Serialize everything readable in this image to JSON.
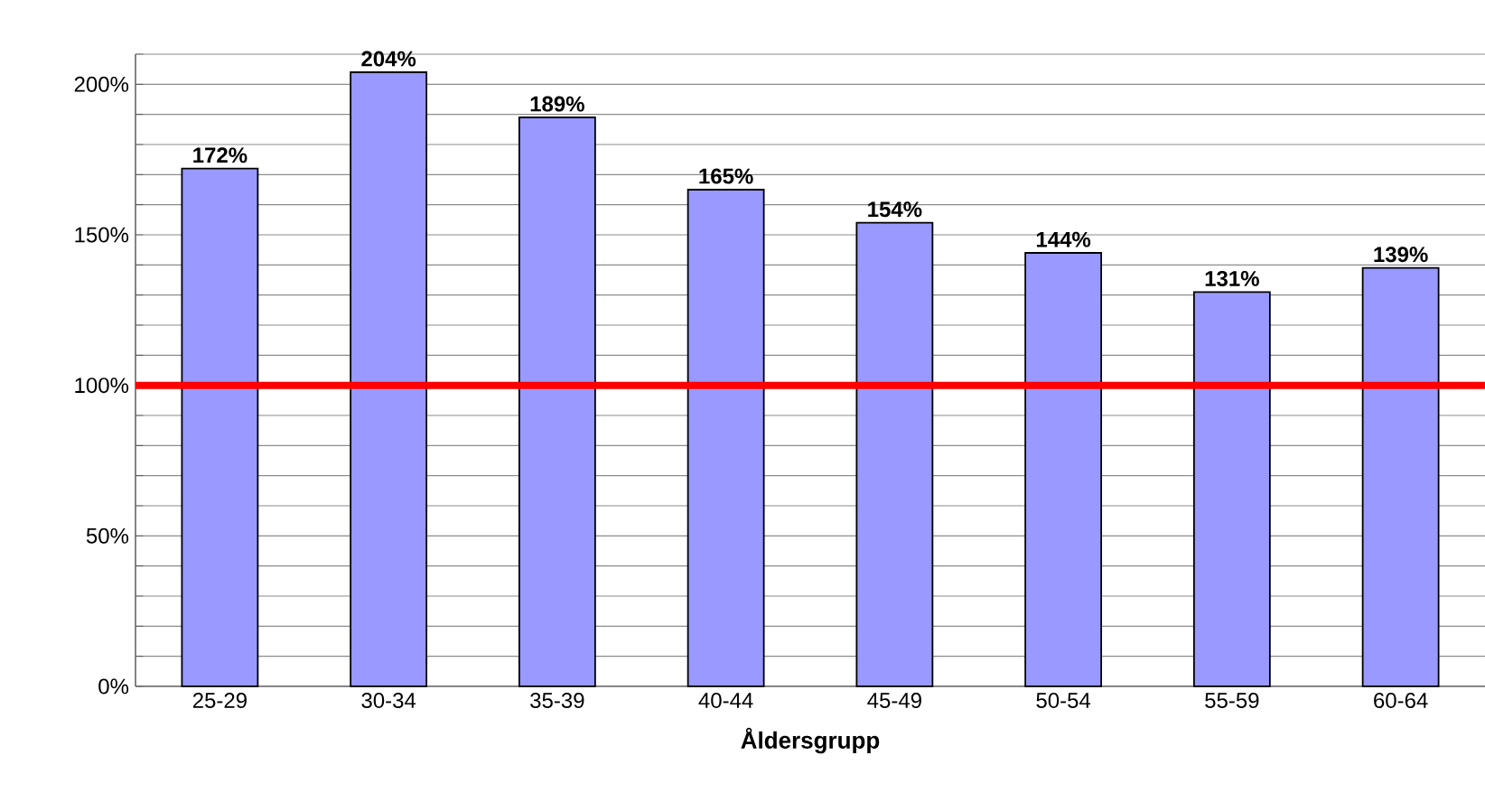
{
  "chart_data": {
    "type": "bar",
    "xlabel": "Åldersgrupp",
    "categories": [
      "25-29",
      "30-34",
      "35-39",
      "40-44",
      "45-49",
      "50-54",
      "55-59",
      "60-64"
    ],
    "values": [
      172,
      204,
      189,
      165,
      154,
      144,
      131,
      139
    ],
    "value_labels": [
      "172%",
      "204%",
      "189%",
      "165%",
      "154%",
      "144%",
      "131%",
      "139%"
    ],
    "color": "#9999ff",
    "ylim": [
      0,
      210
    ],
    "yticks": [
      {
        "value": 0,
        "label": "0%"
      },
      {
        "value": 10,
        "label": null
      },
      {
        "value": 20,
        "label": null
      },
      {
        "value": 30,
        "label": null
      },
      {
        "value": 40,
        "label": null
      },
      {
        "value": 50,
        "label": "50%"
      },
      {
        "value": 60,
        "label": null
      },
      {
        "value": 70,
        "label": null
      },
      {
        "value": 80,
        "label": null
      },
      {
        "value": 90,
        "label": null
      },
      {
        "value": 100,
        "label": "100%"
      },
      {
        "value": 110,
        "label": null
      },
      {
        "value": 120,
        "label": null
      },
      {
        "value": 130,
        "label": null
      },
      {
        "value": 140,
        "label": null
      },
      {
        "value": 150,
        "label": "150%"
      },
      {
        "value": 160,
        "label": null
      },
      {
        "value": 170,
        "label": null
      },
      {
        "value": 180,
        "label": null
      },
      {
        "value": 190,
        "label": null
      },
      {
        "value": 200,
        "label": "200%"
      },
      {
        "value": 210,
        "label": null
      }
    ],
    "grid": "y",
    "ref_lines": [
      {
        "axis": "y",
        "value": 100,
        "color": "#ff0000"
      }
    ]
  }
}
